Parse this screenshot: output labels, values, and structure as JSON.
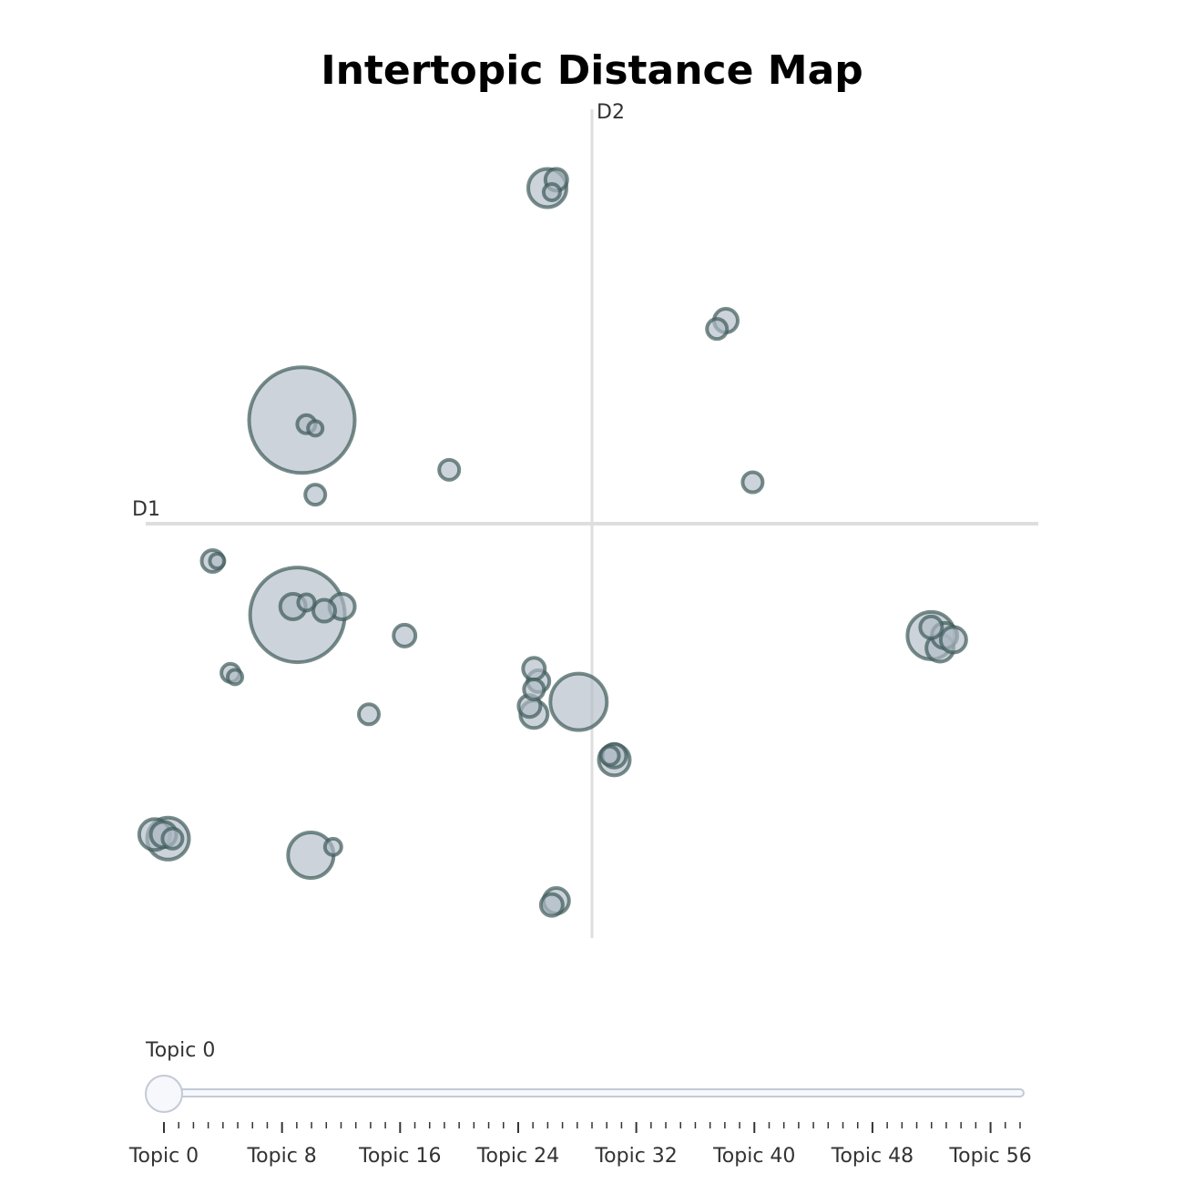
{
  "chart_data": {
    "type": "scatter",
    "title": "Intertopic Distance Map",
    "axis_labels": {
      "x": "D1",
      "y": "D2"
    },
    "xlim": [
      -1,
      1
    ],
    "ylim": [
      -1,
      1
    ],
    "grid": false,
    "bubble_fill": "#b0bcc6",
    "bubble_stroke": "#3d5a58",
    "axis_line_color": "#dedede",
    "points": [
      {
        "x": -0.65,
        "y": 0.25,
        "size": 58
      },
      {
        "x": -0.66,
        "y": -0.22,
        "size": 52
      },
      {
        "x": -0.1,
        "y": 0.81,
        "size": 21
      },
      {
        "x": -0.03,
        "y": -0.43,
        "size": 31
      },
      {
        "x": 0.76,
        "y": -0.27,
        "size": 26
      },
      {
        "x": -0.95,
        "y": -0.76,
        "size": 23
      },
      {
        "x": -0.63,
        "y": -0.8,
        "size": 25
      },
      {
        "x": 0.05,
        "y": -0.57,
        "size": 17
      },
      {
        "x": 0.78,
        "y": -0.3,
        "size": 15
      },
      {
        "x": -0.98,
        "y": -0.75,
        "size": 17
      },
      {
        "x": -0.56,
        "y": -0.2,
        "size": 14
      },
      {
        "x": -0.6,
        "y": -0.21,
        "size": 12
      },
      {
        "x": -0.85,
        "y": -0.09,
        "size": 12
      },
      {
        "x": -0.42,
        "y": -0.27,
        "size": 12
      },
      {
        "x": -0.5,
        "y": -0.46,
        "size": 11
      },
      {
        "x": -0.32,
        "y": 0.13,
        "size": 11
      },
      {
        "x": -0.62,
        "y": 0.07,
        "size": 11
      },
      {
        "x": 0.36,
        "y": 0.1,
        "size": 11
      },
      {
        "x": -0.08,
        "y": -0.91,
        "size": 14
      },
      {
        "x": -0.09,
        "y": -0.92,
        "size": 12
      },
      {
        "x": 0.3,
        "y": 0.49,
        "size": 13
      },
      {
        "x": 0.28,
        "y": 0.47,
        "size": 11
      },
      {
        "x": -0.13,
        "y": -0.46,
        "size": 15
      },
      {
        "x": -0.14,
        "y": -0.44,
        "size": 12
      },
      {
        "x": -0.13,
        "y": -0.4,
        "size": 11
      },
      {
        "x": -0.12,
        "y": -0.38,
        "size": 12
      },
      {
        "x": -0.13,
        "y": -0.35,
        "size": 12
      },
      {
        "x": 0.79,
        "y": -0.27,
        "size": 14
      },
      {
        "x": 0.76,
        "y": -0.25,
        "size": 12
      },
      {
        "x": 0.81,
        "y": -0.28,
        "size": 14
      },
      {
        "x": -0.08,
        "y": 0.83,
        "size": 12
      },
      {
        "x": -0.09,
        "y": 0.8,
        "size": 9
      },
      {
        "x": -0.64,
        "y": 0.24,
        "size": 10
      },
      {
        "x": -0.62,
        "y": 0.23,
        "size": 8
      },
      {
        "x": -0.67,
        "y": -0.2,
        "size": 14
      },
      {
        "x": -0.64,
        "y": -0.19,
        "size": 9
      },
      {
        "x": -0.58,
        "y": -0.78,
        "size": 9
      },
      {
        "x": -0.84,
        "y": -0.09,
        "size": 8
      },
      {
        "x": -0.81,
        "y": -0.36,
        "size": 10
      },
      {
        "x": -0.8,
        "y": -0.37,
        "size": 8
      },
      {
        "x": 0.05,
        "y": -0.56,
        "size": 13
      },
      {
        "x": 0.04,
        "y": -0.56,
        "size": 10
      },
      {
        "x": -0.96,
        "y": -0.75,
        "size": 14
      },
      {
        "x": -0.94,
        "y": -0.76,
        "size": 11
      }
    ]
  },
  "slider": {
    "current_label": "Topic 0",
    "value": 0,
    "min": 0,
    "max": 58,
    "tick_labels": [
      "Topic 0",
      "Topic 8",
      "Topic 16",
      "Topic 24",
      "Topic 32",
      "Topic 40",
      "Topic 48",
      "Topic 56"
    ]
  }
}
